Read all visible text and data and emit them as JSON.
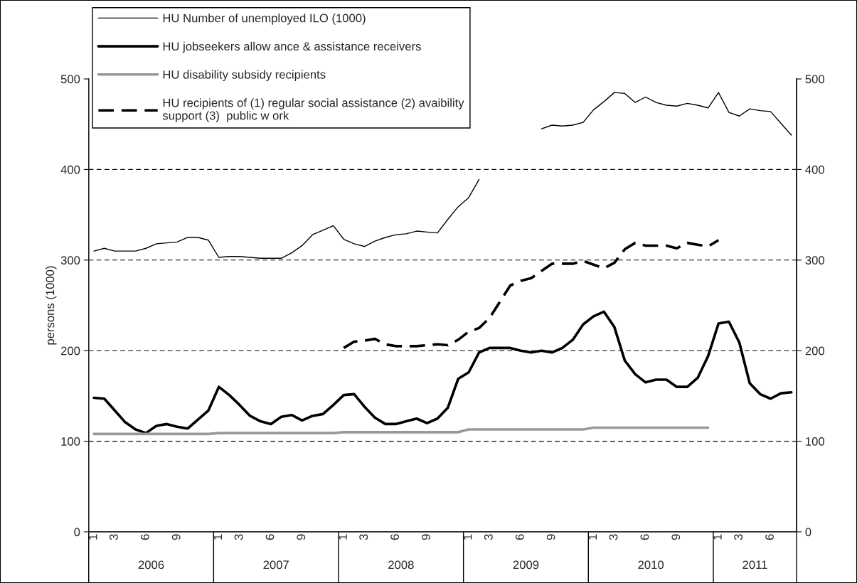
{
  "chart_data": {
    "type": "line",
    "ylabel": "persons (1000)",
    "categories": [
      "1",
      null,
      "3",
      null,
      null,
      "6",
      null,
      null,
      "9",
      null,
      null,
      null,
      "1",
      null,
      "3",
      null,
      null,
      "6",
      null,
      null,
      "9",
      null,
      null,
      null,
      "1",
      null,
      "3",
      null,
      null,
      "6",
      null,
      null,
      "9",
      null,
      null,
      null,
      "1",
      null,
      "3",
      null,
      null,
      "6",
      null,
      null,
      "9",
      null,
      null,
      null,
      "1",
      null,
      "3",
      null,
      null,
      "6",
      null,
      null,
      "9",
      null,
      null,
      null,
      "1",
      null,
      "3",
      null,
      null,
      "6",
      null,
      null
    ],
    "series": [
      {
        "name": "HU Number of unemployed ILO (1000)",
        "color": "#000000",
        "line_style": "solid",
        "values": [
          310,
          313,
          310,
          310,
          310,
          313,
          318,
          319,
          320,
          325,
          325,
          322,
          303,
          304,
          304,
          303,
          302,
          302,
          302,
          308,
          316,
          328,
          333,
          338,
          323,
          318,
          315,
          321,
          325,
          328,
          329,
          332,
          331,
          330,
          345,
          359,
          369,
          389,
          null,
          null,
          null,
          null,
          null,
          445,
          449,
          448,
          449,
          452,
          466,
          475,
          485,
          484,
          474,
          480,
          474,
          471,
          470,
          473,
          471,
          468,
          485,
          463,
          459,
          467,
          465,
          464,
          451,
          438
        ]
      },
      {
        "name": "HU jobseekers allow ance & assistance receivers",
        "color": "#000000",
        "line_style": "solid",
        "values": [
          148,
          147,
          134,
          121,
          113,
          109,
          117,
          119,
          116,
          114,
          124,
          134,
          160,
          151,
          140,
          128,
          122,
          119,
          127,
          129,
          123,
          128,
          130,
          140,
          151,
          152,
          138,
          126,
          119,
          119,
          122,
          125,
          120,
          125,
          137,
          169,
          176,
          198,
          203,
          203,
          203,
          200,
          198,
          200,
          198,
          203,
          212,
          229,
          238,
          243,
          226,
          189,
          174,
          165,
          168,
          168,
          160,
          160,
          170,
          194,
          230,
          232,
          209,
          164,
          152,
          147,
          153,
          154
        ]
      },
      {
        "name": "HU disability subsidy recipients",
        "color": "#999999",
        "line_style": "solid",
        "values": [
          108,
          108,
          108,
          108,
          108,
          108,
          108,
          108,
          108,
          108,
          108,
          108,
          109,
          109,
          109,
          109,
          109,
          109,
          109,
          109,
          109,
          109,
          109,
          109,
          110,
          110,
          110,
          110,
          110,
          110,
          110,
          110,
          110,
          110,
          110,
          110,
          113,
          113,
          113,
          113,
          113,
          113,
          113,
          113,
          113,
          113,
          113,
          113,
          115,
          115,
          115,
          115,
          115,
          115,
          115,
          115,
          115,
          115,
          115,
          115,
          null,
          null,
          null,
          null,
          null,
          null,
          null,
          null
        ]
      },
      {
        "name": "HU recipients of (1) regular social assistance (2) avaibility\nsupport (3)  public w ork",
        "color": "#000000",
        "line_style": "dashed",
        "values": [
          null,
          null,
          null,
          null,
          null,
          null,
          null,
          null,
          null,
          null,
          null,
          null,
          null,
          null,
          null,
          null,
          null,
          null,
          null,
          null,
          null,
          null,
          null,
          null,
          203,
          210,
          211,
          213,
          207,
          205,
          205,
          205,
          206,
          207,
          206,
          212,
          221,
          225,
          236,
          254,
          272,
          277,
          280,
          288,
          296,
          296,
          296,
          299,
          295,
          291,
          297,
          312,
          319,
          316,
          316,
          316,
          313,
          319,
          317,
          315,
          322,
          null,
          null,
          null,
          null,
          null,
          null,
          null
        ]
      }
    ],
    "annotations": [
      "2006",
      "2007",
      "2008",
      "2009",
      "2010",
      "2011"
    ],
    "ylim": [
      0,
      500
    ],
    "yticks": [
      0,
      100,
      200,
      300,
      400,
      500
    ],
    "y2lim": [
      0,
      500
    ],
    "y2ticks": [
      0,
      100,
      200,
      300,
      400,
      500
    ],
    "grid": "y",
    "legend": "top left",
    "marker": "none"
  }
}
